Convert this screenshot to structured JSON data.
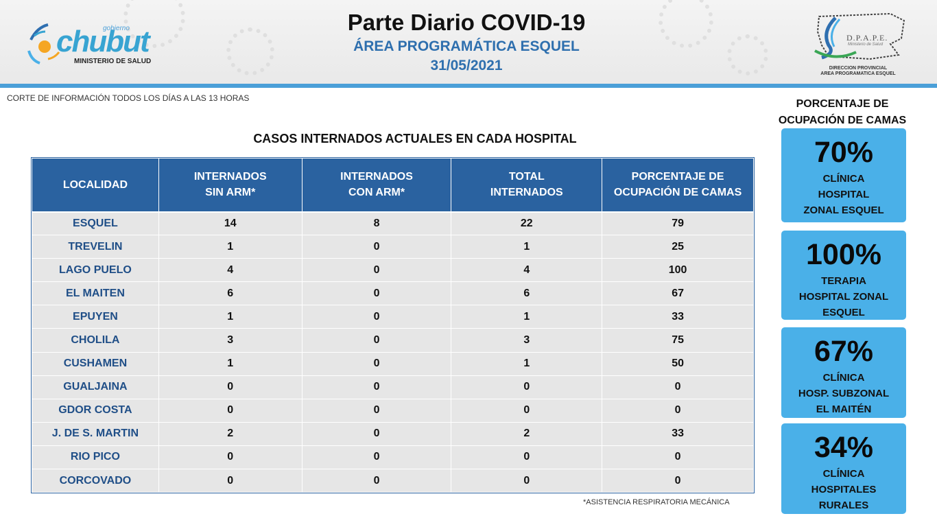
{
  "header": {
    "logo_left": {
      "prefix": "gobierno",
      "brand": "chubut",
      "ministry": "MINISTERIO DE SALUD"
    },
    "title": "Parte Diario COVID-19",
    "subtitle": "ÁREA PROGRAMÁTICA ESQUEL",
    "date": "31/05/2021",
    "logo_right": {
      "acronym": "D.P.A.P.E.",
      "tagline": "Ministerio de Salud",
      "caption_line1": "DIRECCION PROVINCIAL",
      "caption_line2": "AREA PROGRAMATICA ESQUEL"
    },
    "accent_color": "#4a9fd8"
  },
  "note": "CORTE DE INFORMACIÓN TODOS LOS DÍAS A LAS 13 HORAS",
  "table": {
    "title": "CASOS INTERNADOS ACTUALES EN CADA HOSPITAL",
    "headers": [
      [
        "LOCALIDAD"
      ],
      [
        "INTERNADOS",
        "SIN ARM*"
      ],
      [
        "INTERNADOS",
        "CON ARM*"
      ],
      [
        "TOTAL",
        "INTERNADOS"
      ],
      [
        "PORCENTAJE DE",
        "OCUPACIÓN DE CAMAS"
      ]
    ],
    "rows": [
      [
        "ESQUEL",
        "14",
        "8",
        "22",
        "79"
      ],
      [
        "TREVELIN",
        "1",
        "0",
        "1",
        "25"
      ],
      [
        "LAGO PUELO",
        "4",
        "0",
        "4",
        "100"
      ],
      [
        "EL MAITEN",
        "6",
        "0",
        "6",
        "67"
      ],
      [
        "EPUYEN",
        "1",
        "0",
        "1",
        "33"
      ],
      [
        "CHOLILA",
        "3",
        "0",
        "3",
        "75"
      ],
      [
        "CUSHAMEN",
        "1",
        "0",
        "1",
        "50"
      ],
      [
        "GUALJAINA",
        "0",
        "0",
        "0",
        "0"
      ],
      [
        "GDOR COSTA",
        "0",
        "0",
        "0",
        "0"
      ],
      [
        "J. DE S. MARTIN",
        "2",
        "0",
        "2",
        "33"
      ],
      [
        "RIO PICO",
        "0",
        "0",
        "0",
        "0"
      ],
      [
        "CORCOVADO",
        "0",
        "0",
        "0",
        "0"
      ]
    ],
    "footnote": "*ASISTENCIA RESPIRATORIA MECÁNICA",
    "header_color": "#2a62a0",
    "cell_color": "#e6e6e6"
  },
  "side": {
    "title_line1": "PORCENTAJE DE",
    "title_line2": "OCUPACIÓN DE CAMAS",
    "card_color": "#4ab0e8",
    "cards": [
      {
        "pct": "70%",
        "lines": [
          "CLÍNICA",
          "HOSPITAL",
          "ZONAL ESQUEL"
        ]
      },
      {
        "pct": "100%",
        "lines": [
          "TERAPIA",
          "HOSPITAL ZONAL",
          "ESQUEL"
        ]
      },
      {
        "pct": "67%",
        "lines": [
          "CLÍNICA",
          "HOSP. SUBZONAL",
          "EL MAITÉN"
        ]
      },
      {
        "pct": "34%",
        "lines": [
          "CLÍNICA",
          "HOSPITALES",
          "RURALES"
        ]
      }
    ]
  }
}
